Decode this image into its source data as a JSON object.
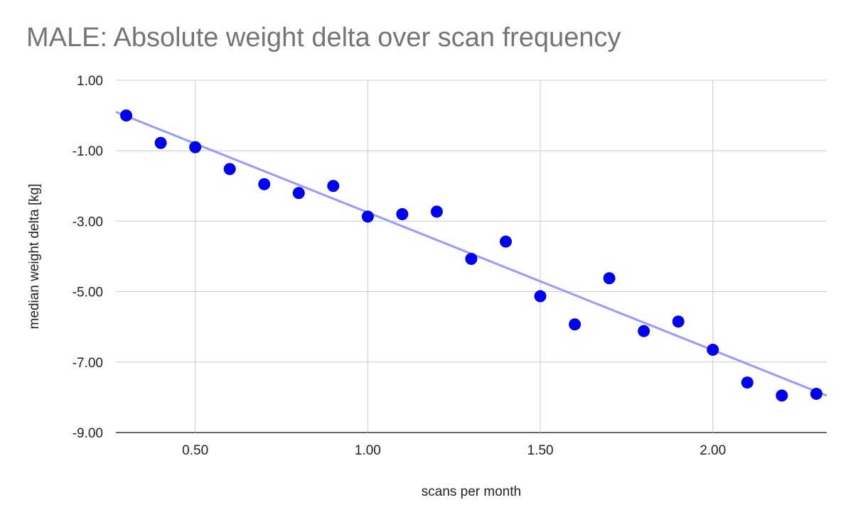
{
  "chart_data": {
    "type": "scatter",
    "title": "MALE: Absolute weight delta over scan frequency",
    "xlabel": "scans per month",
    "ylabel": "median weight delta [kg]",
    "xlim": [
      0.27,
      2.33
    ],
    "ylim": [
      -9,
      1
    ],
    "x_ticks": [
      0.5,
      1.0,
      1.5,
      2.0
    ],
    "x_tick_labels": [
      "0.50",
      "1.00",
      "1.50",
      "2.00"
    ],
    "y_ticks": [
      1,
      -1,
      -3,
      -5,
      -7,
      -9
    ],
    "y_tick_labels": [
      "1.00",
      "-1.00",
      "-3.00",
      "-5.00",
      "-7.00",
      "-9.00"
    ],
    "grid": true,
    "legend": "none",
    "series": [
      {
        "color": "#0000ee",
        "x": [
          0.3,
          0.4,
          0.5,
          0.6,
          0.7,
          0.8,
          0.9,
          1.0,
          1.1,
          1.2,
          1.3,
          1.4,
          1.5,
          1.6,
          1.7,
          1.8,
          1.9,
          2.0,
          2.1,
          2.2,
          2.3
        ],
        "y": [
          0.0,
          -0.78,
          -0.9,
          -1.52,
          -1.95,
          -2.2,
          -2.0,
          -2.87,
          -2.8,
          -2.73,
          -4.07,
          -3.58,
          -5.13,
          -5.93,
          -4.62,
          -6.12,
          -5.85,
          -6.65,
          -7.58,
          -7.95,
          -7.9
        ]
      }
    ],
    "trendline": {
      "color": "#9999ff",
      "x": [
        0.27,
        2.33
      ],
      "y": [
        0.1,
        -7.95
      ]
    }
  }
}
